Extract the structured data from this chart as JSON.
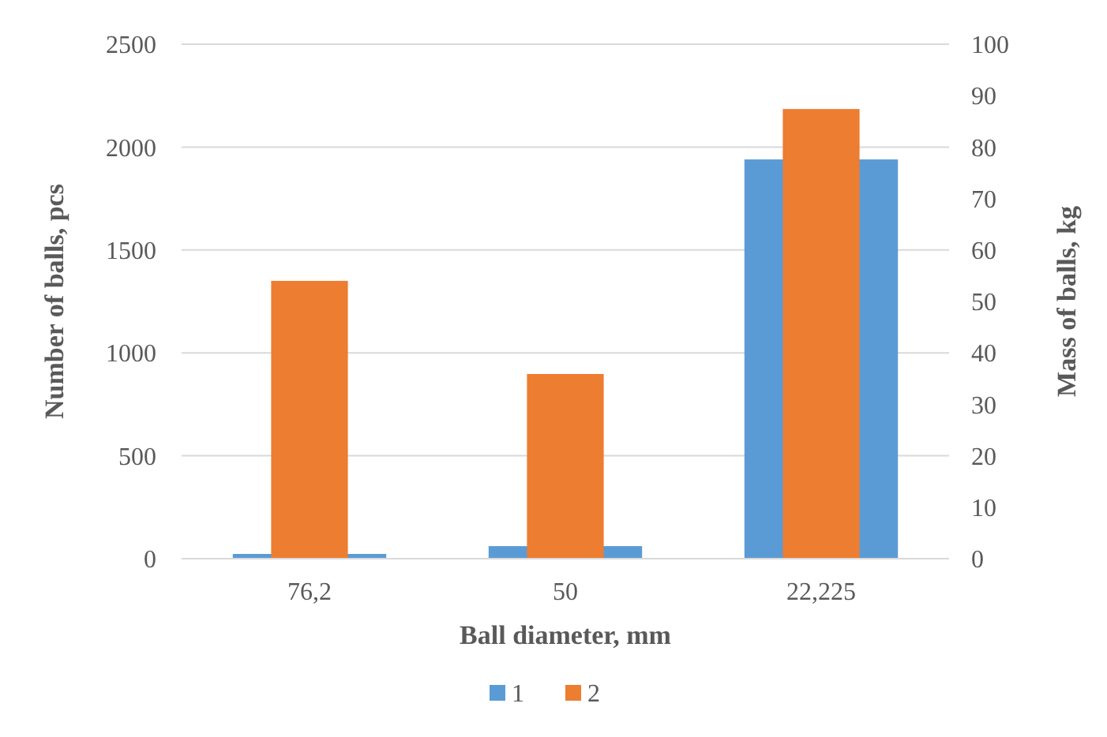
{
  "chart_data": {
    "type": "bar",
    "xlabel": "Ball diameter, mm",
    "ylabel": "Number of balls, pcs",
    "y2label": "Mass of balls, kg",
    "categories": [
      "76,2",
      "50",
      "22,225"
    ],
    "series": [
      {
        "name": "1",
        "color": "#5b9bd5",
        "values": [
          23,
          61,
          1940
        ]
      },
      {
        "name": "2",
        "color": "#ed7d31",
        "values": [
          54,
          35.9,
          87.4
        ],
        "axis": "y2"
      }
    ],
    "ylim": [
      0,
      2500
    ],
    "yticks": [
      0,
      500,
      1000,
      1500,
      2000,
      2500
    ],
    "y2lim": [
      0,
      100
    ],
    "y2ticks": [
      0,
      10,
      20,
      30,
      40,
      50,
      60,
      70,
      80,
      90,
      100
    ],
    "grid": "y",
    "legend": "bottom"
  }
}
